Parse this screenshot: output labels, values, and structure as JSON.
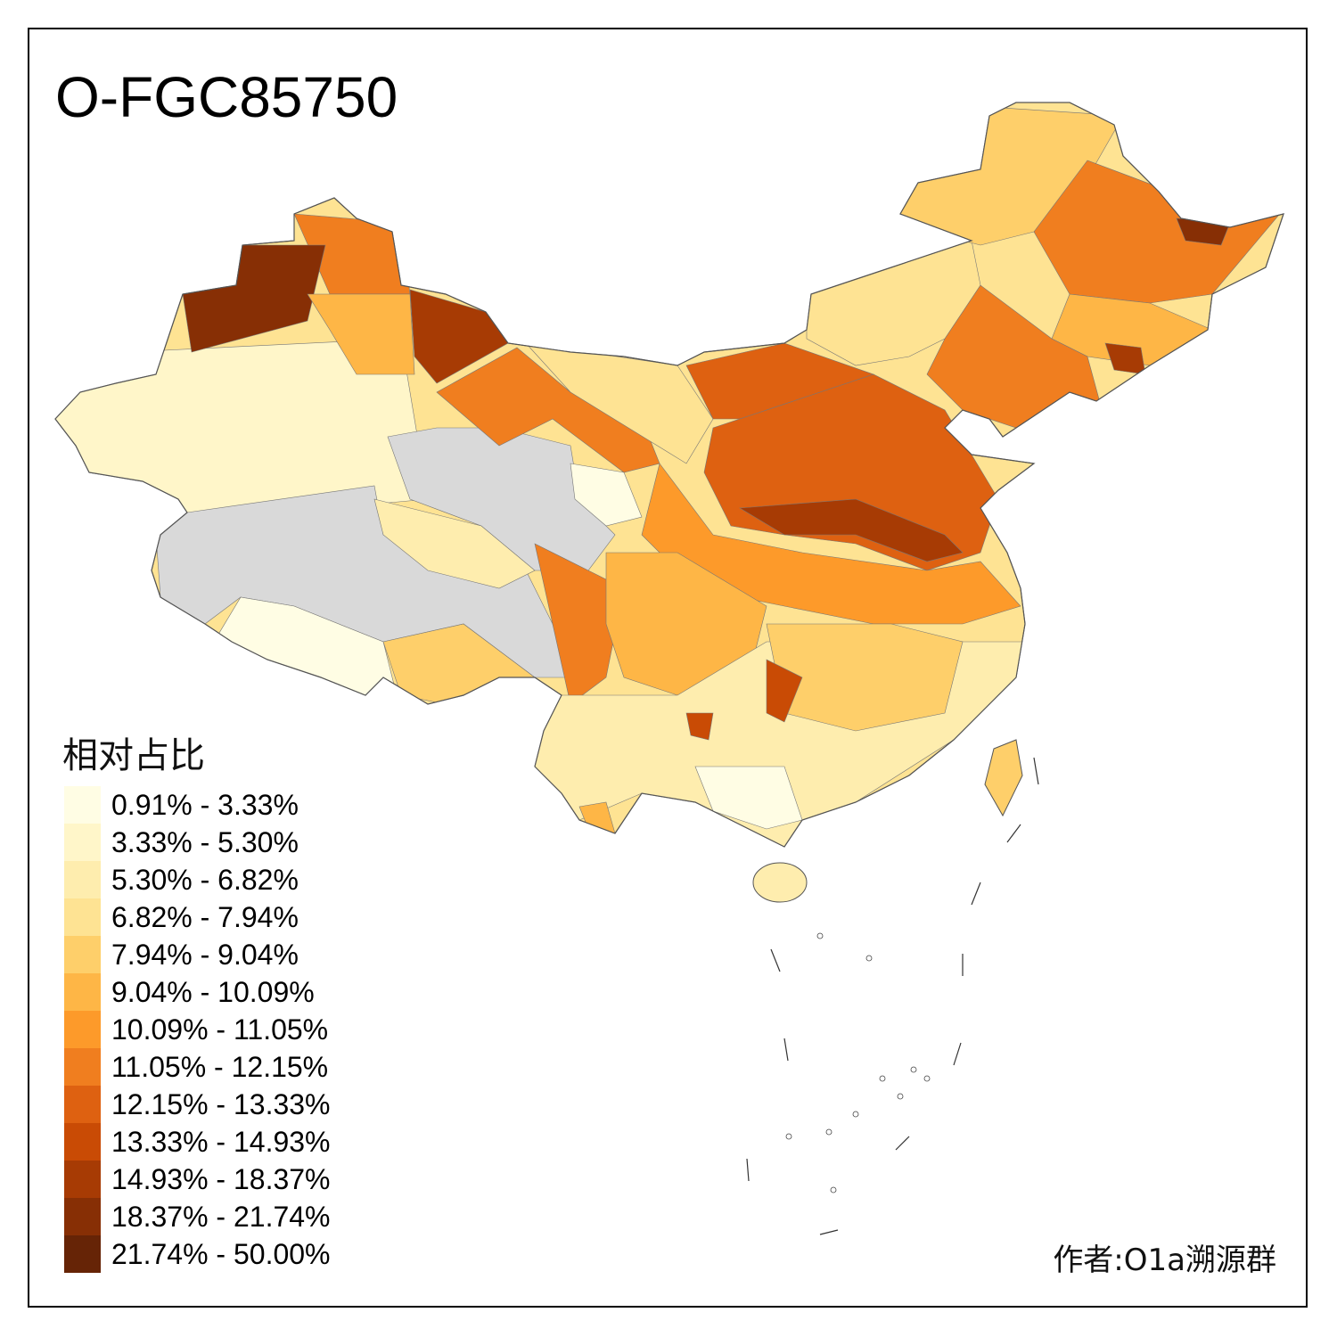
{
  "title": "O-FGC85750",
  "legend": {
    "title": "相对占比",
    "no_data_color": "#D9D9D9",
    "classes": [
      {
        "label": "0.91% - 3.33%",
        "color": "#FFFDE4"
      },
      {
        "label": "3.33% - 5.30%",
        "color": "#FFF6C9"
      },
      {
        "label": "5.30% - 6.82%",
        "color": "#FEEDAE"
      },
      {
        "label": "6.82% - 7.94%",
        "color": "#FEE393"
      },
      {
        "label": "7.94% - 9.04%",
        "color": "#FECF6A"
      },
      {
        "label": "9.04% - 10.09%",
        "color": "#FEB646"
      },
      {
        "label": "10.09% - 11.05%",
        "color": "#FD9A2A"
      },
      {
        "label": "11.05% - 12.15%",
        "color": "#F07E1F"
      },
      {
        "label": "12.15% - 13.33%",
        "color": "#DE6111"
      },
      {
        "label": "13.33% - 14.93%",
        "color": "#C94B05"
      },
      {
        "label": "14.93% - 18.37%",
        "color": "#A73B04"
      },
      {
        "label": "18.37% - 21.74%",
        "color": "#872F05"
      },
      {
        "label": "21.74% - 50.00%",
        "color": "#662406"
      }
    ]
  },
  "author": "作者:O1a溯源群"
}
